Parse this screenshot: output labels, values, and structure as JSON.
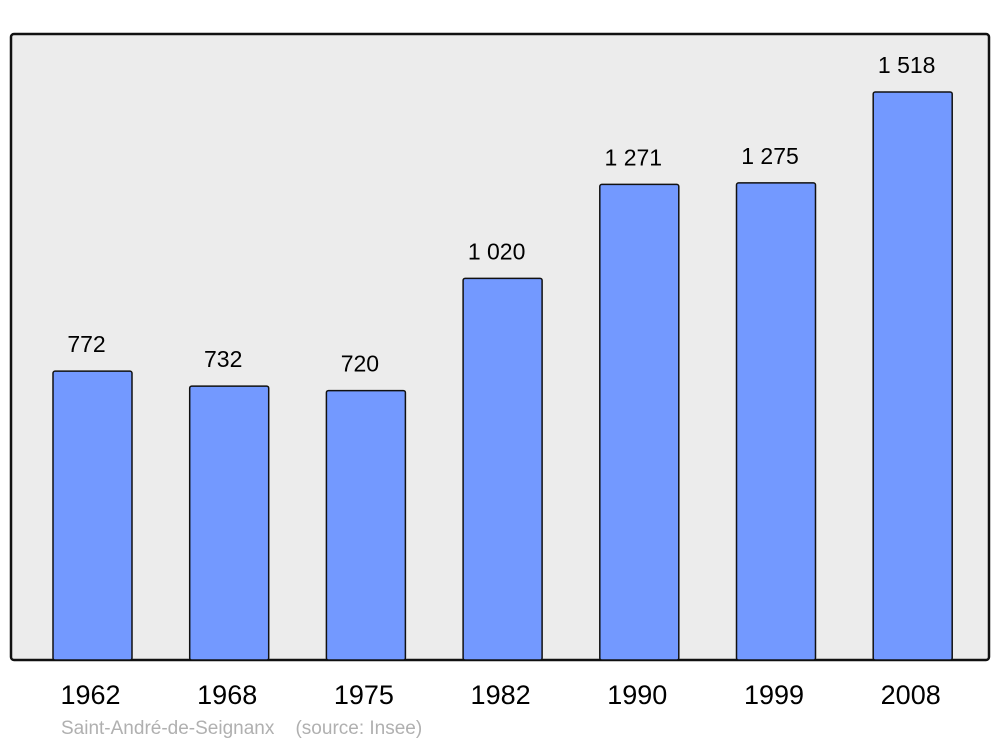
{
  "chart_data": {
    "type": "bar",
    "categories": [
      "1962",
      "1968",
      "1975",
      "1982",
      "1990",
      "1999",
      "2008"
    ],
    "values": [
      772,
      732,
      720,
      1020,
      1271,
      1275,
      1518
    ],
    "value_labels": [
      "772",
      "732",
      "720",
      "1 020",
      "1 271",
      "1 275",
      "1 518"
    ],
    "title": "",
    "xlabel": "",
    "ylabel": "",
    "ylim": [
      0,
      1673
    ],
    "grid": false,
    "bar_color": "#7399ff",
    "plot_background": "#ececec"
  },
  "footer": {
    "place": "Saint-André-de-Seignanx",
    "source": "(source: Insee)"
  }
}
